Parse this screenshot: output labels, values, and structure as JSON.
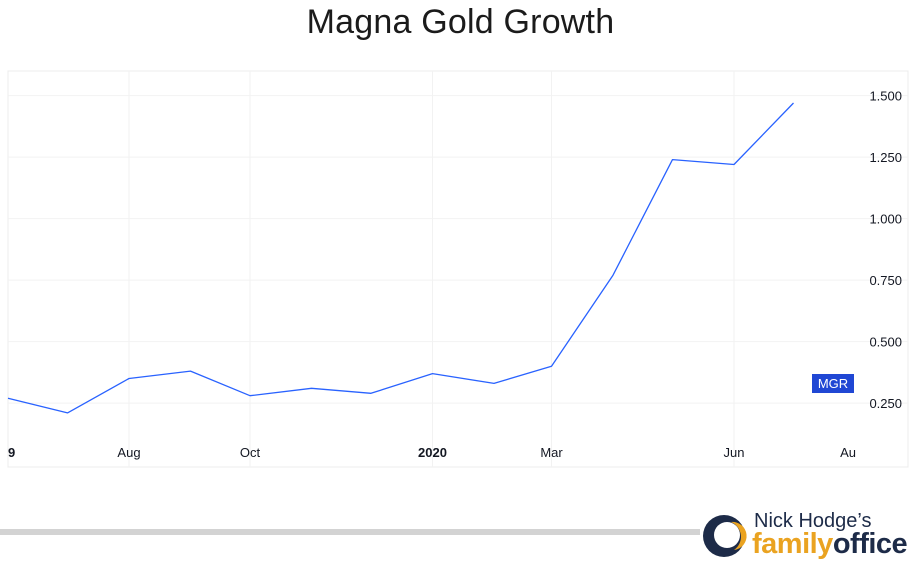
{
  "title": "Magna Gold Growth",
  "chart_data": {
    "type": "line",
    "title": "Magna Gold Growth",
    "x_labels": [
      "9",
      "Aug",
      "Oct",
      "2020",
      "Mar",
      "Jun",
      "Au"
    ],
    "y_ticks": [
      "0.250",
      "0.500",
      "0.750",
      "1.000",
      "1.250",
      "1.500"
    ],
    "y_tick_values": [
      0.25,
      0.5,
      0.75,
      1.0,
      1.25,
      1.5
    ],
    "ylim": [
      0.1,
      1.6
    ],
    "grid": true,
    "series": [
      {
        "name": "MGR",
        "color": "#2962ff",
        "x": [
          "2019-06-01",
          "2019-07-01",
          "2019-08-01",
          "2019-09-01",
          "2019-10-01",
          "2019-11-01",
          "2019-12-01",
          "2020-01-01",
          "2020-02-01",
          "2020-03-01",
          "2020-04-01",
          "2020-05-01",
          "2020-06-01",
          "2020-07-01",
          "2020-08-01"
        ],
        "y": [
          0.27,
          0.21,
          0.35,
          0.38,
          0.28,
          0.31,
          0.29,
          0.37,
          0.33,
          0.4,
          0.77,
          1.24,
          1.22,
          1.47,
          null
        ],
        "label": "MGR"
      }
    ]
  },
  "brand": {
    "line1": "Nick Hodge’s",
    "line2a": "family",
    "line2b": "office",
    "colors": {
      "navy": "#1d2b48",
      "gold": "#eaa321"
    }
  }
}
